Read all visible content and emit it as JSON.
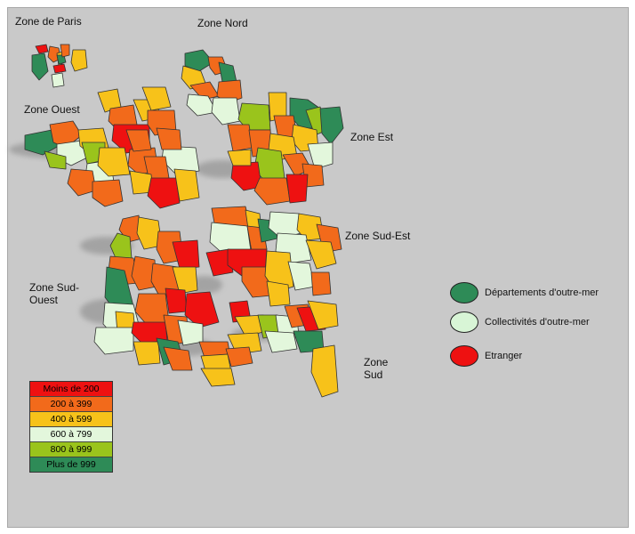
{
  "zones": {
    "paris": "Zone de Paris",
    "nord": "Zone Nord",
    "ouest": "Zone Ouest",
    "est": "Zone Est",
    "sud_est": "Zone Sud-Est",
    "sud_ouest": "Zone Sud-\nOuest",
    "sud": "Zone\nSud"
  },
  "legend_territories": [
    {
      "label": "Départements d'outre-mer",
      "color": "#2e8b57"
    },
    {
      "label": "Collectivités d'outre-mer",
      "color": "#d8f5d6"
    },
    {
      "label": "Etranger",
      "color": "#ee1111"
    }
  ],
  "scale": [
    {
      "label": "Moins de 200",
      "color": "#ee1111"
    },
    {
      "label": "200 à 399",
      "color": "#f26a1b"
    },
    {
      "label": "400 à 599",
      "color": "#f7c21a"
    },
    {
      "label": "600 à 799",
      "color": "#e3f7dc"
    },
    {
      "label": "800 à 999",
      "color": "#9ac41c"
    },
    {
      "label": "Plus de 999",
      "color": "#2e8b57"
    }
  ],
  "palette": {
    "red": "#ee1111",
    "orange": "#f26a1b",
    "yellow": "#f7c21a",
    "pale": "#e3f7dc",
    "lime": "#9ac41c",
    "green": "#2e8b57"
  }
}
